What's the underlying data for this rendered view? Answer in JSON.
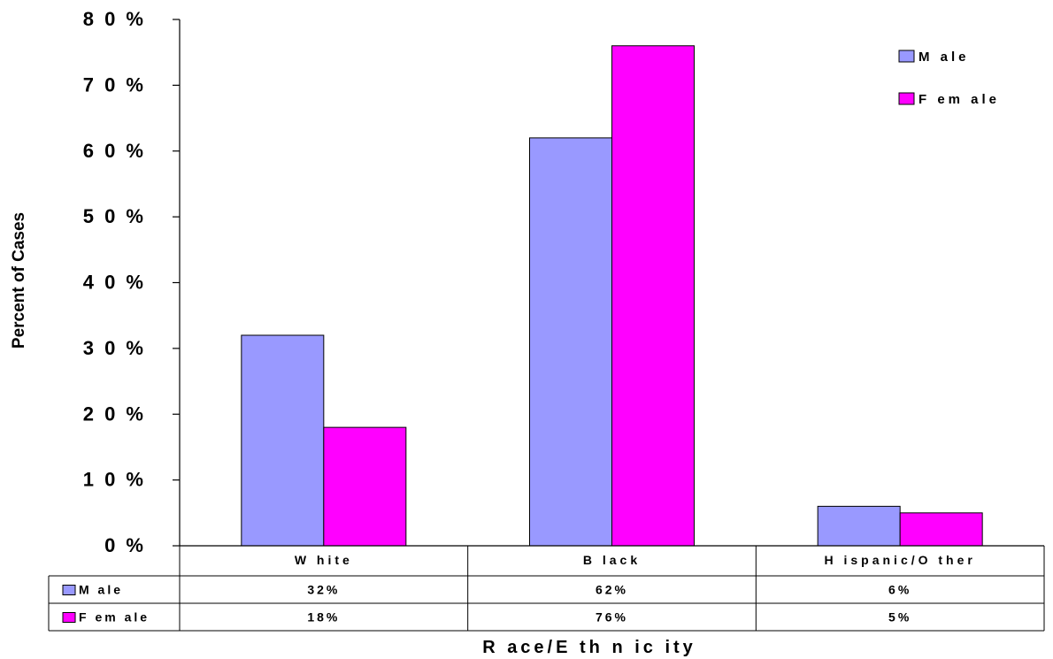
{
  "chart_data": {
    "type": "bar",
    "categories": [
      "W hite",
      "B lack",
      "H ispanic/O ther"
    ],
    "series": [
      {
        "name": "M ale",
        "values": [
          32,
          62,
          6
        ],
        "labels": [
          "32%",
          "62%",
          "6%"
        ],
        "color": "#9999ff"
      },
      {
        "name": "F em ale",
        "values": [
          18,
          76,
          5
        ],
        "labels": [
          "18%",
          "76%",
          "5%"
        ],
        "color": "#ff00ff"
      }
    ],
    "title": "",
    "xlabel": "R ace/E th n ic ity",
    "ylabel": "Percent of Cases",
    "ylim": [
      0,
      80
    ],
    "yticks": [
      0,
      10,
      20,
      30,
      40,
      50,
      60,
      70,
      80
    ],
    "ytick_labels": [
      "0 %",
      "1 0 %",
      "2 0 %",
      "3 0 %",
      "4 0 %",
      "5 0 %",
      "6 0 %",
      "7 0 %",
      "8 0 %"
    ],
    "grid": false,
    "legend_position": "top-right",
    "data_table": true
  }
}
